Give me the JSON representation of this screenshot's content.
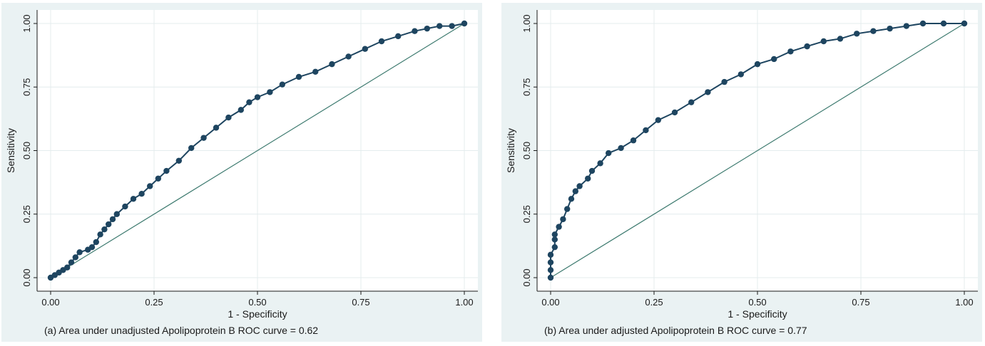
{
  "colors": {
    "panel_bg": "#eaf2f3",
    "plot_bg": "#ffffff",
    "grid": "#e4ecee",
    "curve": "#1e4560",
    "reference_line": "#3d7a6f"
  },
  "chart_data": [
    {
      "type": "scatter",
      "caption": "(a) Area under unadjusted Apolipoprotein B ROC curve = 0.62",
      "xlabel": "1 - Specificity",
      "ylabel": "Sensitivity",
      "xlim": [
        0,
        1
      ],
      "ylim": [
        0,
        1
      ],
      "xticks": [
        "0.00",
        "0.25",
        "0.50",
        "0.75",
        "1.00"
      ],
      "yticks": [
        "0.00",
        "0.25",
        "0.50",
        "0.75",
        "1.00"
      ],
      "grid": true,
      "reference_line": [
        [
          0,
          0
        ],
        [
          1,
          1
        ]
      ],
      "roc_points": [
        [
          0.0,
          0.0
        ],
        [
          0.01,
          0.01
        ],
        [
          0.02,
          0.02
        ],
        [
          0.03,
          0.03
        ],
        [
          0.04,
          0.04
        ],
        [
          0.05,
          0.06
        ],
        [
          0.06,
          0.08
        ],
        [
          0.07,
          0.1
        ],
        [
          0.09,
          0.11
        ],
        [
          0.1,
          0.12
        ],
        [
          0.11,
          0.14
        ],
        [
          0.12,
          0.17
        ],
        [
          0.13,
          0.19
        ],
        [
          0.14,
          0.21
        ],
        [
          0.15,
          0.23
        ],
        [
          0.16,
          0.25
        ],
        [
          0.18,
          0.28
        ],
        [
          0.2,
          0.31
        ],
        [
          0.22,
          0.33
        ],
        [
          0.24,
          0.36
        ],
        [
          0.26,
          0.39
        ],
        [
          0.28,
          0.42
        ],
        [
          0.31,
          0.46
        ],
        [
          0.34,
          0.51
        ],
        [
          0.37,
          0.55
        ],
        [
          0.4,
          0.59
        ],
        [
          0.43,
          0.63
        ],
        [
          0.46,
          0.66
        ],
        [
          0.48,
          0.69
        ],
        [
          0.5,
          0.71
        ],
        [
          0.53,
          0.73
        ],
        [
          0.56,
          0.76
        ],
        [
          0.6,
          0.79
        ],
        [
          0.64,
          0.81
        ],
        [
          0.68,
          0.84
        ],
        [
          0.72,
          0.87
        ],
        [
          0.76,
          0.9
        ],
        [
          0.8,
          0.93
        ],
        [
          0.84,
          0.95
        ],
        [
          0.88,
          0.97
        ],
        [
          0.91,
          0.98
        ],
        [
          0.94,
          0.99
        ],
        [
          0.97,
          0.99
        ],
        [
          1.0,
          1.0
        ]
      ]
    },
    {
      "type": "scatter",
      "caption": "(b) Area under adjusted Apolipoprotein B ROC curve = 0.77",
      "xlabel": "1 - Specificity",
      "ylabel": "Sensitivity",
      "xlim": [
        0,
        1
      ],
      "ylim": [
        0,
        1
      ],
      "xticks": [
        "0.00",
        "0.25",
        "0.50",
        "0.75",
        "1.00"
      ],
      "yticks": [
        "0.00",
        "0.25",
        "0.50",
        "0.75",
        "1.00"
      ],
      "grid": true,
      "reference_line": [
        [
          0,
          0
        ],
        [
          1,
          1
        ]
      ],
      "roc_points": [
        [
          0.0,
          0.0
        ],
        [
          0.0,
          0.03
        ],
        [
          0.0,
          0.06
        ],
        [
          0.0,
          0.09
        ],
        [
          0.01,
          0.12
        ],
        [
          0.01,
          0.15
        ],
        [
          0.01,
          0.17
        ],
        [
          0.02,
          0.2
        ],
        [
          0.03,
          0.23
        ],
        [
          0.04,
          0.27
        ],
        [
          0.05,
          0.31
        ],
        [
          0.06,
          0.34
        ],
        [
          0.07,
          0.36
        ],
        [
          0.09,
          0.39
        ],
        [
          0.1,
          0.42
        ],
        [
          0.12,
          0.45
        ],
        [
          0.14,
          0.49
        ],
        [
          0.17,
          0.51
        ],
        [
          0.2,
          0.54
        ],
        [
          0.23,
          0.58
        ],
        [
          0.26,
          0.62
        ],
        [
          0.3,
          0.65
        ],
        [
          0.34,
          0.69
        ],
        [
          0.38,
          0.73
        ],
        [
          0.42,
          0.77
        ],
        [
          0.46,
          0.8
        ],
        [
          0.5,
          0.84
        ],
        [
          0.54,
          0.86
        ],
        [
          0.58,
          0.89
        ],
        [
          0.62,
          0.91
        ],
        [
          0.66,
          0.93
        ],
        [
          0.7,
          0.94
        ],
        [
          0.74,
          0.96
        ],
        [
          0.78,
          0.97
        ],
        [
          0.82,
          0.98
        ],
        [
          0.86,
          0.99
        ],
        [
          0.9,
          1.0
        ],
        [
          0.95,
          1.0
        ],
        [
          1.0,
          1.0
        ]
      ]
    }
  ]
}
